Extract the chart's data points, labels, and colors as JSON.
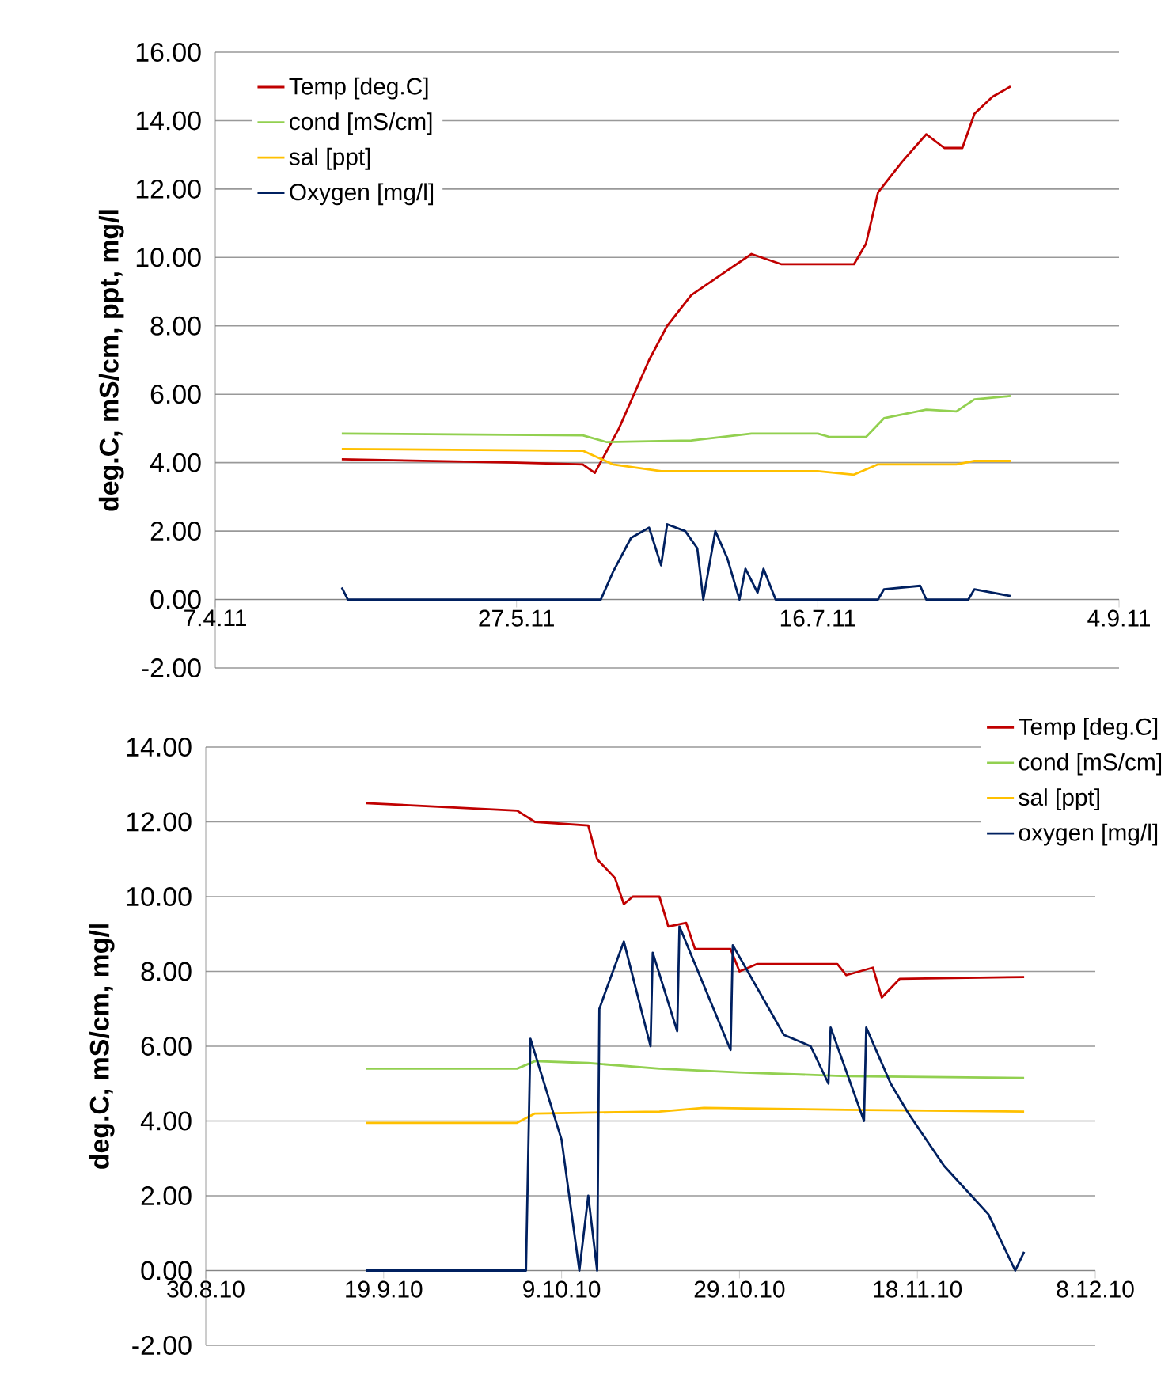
{
  "chart_data": [
    {
      "type": "line",
      "ylabel": "deg.C, mS/cm, ppt, mg/l",
      "legend": "top left",
      "grid": "y",
      "marker": "none",
      "line_style": "solid",
      "xlim": [
        "2011-04-07",
        "2011-09-04"
      ],
      "xticks": [
        {
          "value": "2011-04-07",
          "label": "7.4.11"
        },
        {
          "value": "2011-05-27",
          "label": "27.5.11"
        },
        {
          "value": "2011-07-16",
          "label": "16.7.11"
        },
        {
          "value": "2011-09-04",
          "label": "4.9.11"
        }
      ],
      "ylim": [
        -2,
        16
      ],
      "yticks": [
        {
          "value": -2,
          "label": "-2.00"
        },
        {
          "value": 0,
          "label": "0.00"
        },
        {
          "value": 2,
          "label": "2.00"
        },
        {
          "value": 4,
          "label": "4.00"
        },
        {
          "value": 6,
          "label": "6.00"
        },
        {
          "value": 8,
          "label": "8.00"
        },
        {
          "value": 10,
          "label": "10.00"
        },
        {
          "value": 12,
          "label": "12.00"
        },
        {
          "value": 14,
          "label": "14.00"
        },
        {
          "value": 16,
          "label": "16.00"
        }
      ],
      "series": [
        {
          "name": "Temp [deg.C]",
          "color": "#c00000",
          "x": [
            "2011-04-28",
            "2011-05-27",
            "2011-06-07",
            "2011-06-09",
            "2011-06-13",
            "2011-06-18",
            "2011-06-21",
            "2011-06-25",
            "2011-06-30",
            "2011-07-05",
            "2011-07-10",
            "2011-07-16",
            "2011-07-22",
            "2011-07-24",
            "2011-07-26",
            "2011-07-30",
            "2011-08-03",
            "2011-08-06",
            "2011-08-09",
            "2011-08-11",
            "2011-08-14",
            "2011-08-17"
          ],
          "values": [
            4.1,
            4.0,
            3.95,
            3.7,
            5.0,
            7.0,
            8.0,
            8.9,
            9.5,
            10.1,
            9.8,
            9.8,
            9.8,
            10.4,
            11.9,
            12.8,
            13.6,
            13.2,
            13.2,
            14.2,
            14.7,
            15.0
          ]
        },
        {
          "name": "cond [mS/cm]",
          "color": "#92d050",
          "x": [
            "2011-04-28",
            "2011-06-07",
            "2011-06-11",
            "2011-06-25",
            "2011-07-05",
            "2011-07-16",
            "2011-07-18",
            "2011-07-24",
            "2011-07-27",
            "2011-08-03",
            "2011-08-08",
            "2011-08-11",
            "2011-08-17"
          ],
          "values": [
            4.85,
            4.8,
            4.6,
            4.65,
            4.85,
            4.85,
            4.75,
            4.75,
            5.3,
            5.55,
            5.5,
            5.85,
            5.95
          ]
        },
        {
          "name": "sal [ppt]",
          "color": "#ffc000",
          "x": [
            "2011-04-28",
            "2011-06-07",
            "2011-06-12",
            "2011-06-20",
            "2011-07-16",
            "2011-07-22",
            "2011-07-26",
            "2011-08-08",
            "2011-08-11",
            "2011-08-17"
          ],
          "values": [
            4.4,
            4.35,
            3.95,
            3.75,
            3.75,
            3.65,
            3.95,
            3.95,
            4.05,
            4.05
          ]
        },
        {
          "name": "Oxygen [mg/l]",
          "color": "#002060",
          "x": [
            "2011-04-28",
            "2011-04-29",
            "2011-06-10",
            "2011-06-12",
            "2011-06-15",
            "2011-06-18",
            "2011-06-20",
            "2011-06-21",
            "2011-06-24",
            "2011-06-26",
            "2011-06-27",
            "2011-06-29",
            "2011-07-01",
            "2011-07-03",
            "2011-07-04",
            "2011-07-06",
            "2011-07-07",
            "2011-07-09",
            "2011-07-26",
            "2011-07-27",
            "2011-08-02",
            "2011-08-03",
            "2011-08-10",
            "2011-08-11",
            "2011-08-17"
          ],
          "values": [
            0.35,
            0.0,
            0.0,
            0.8,
            1.8,
            2.1,
            1.0,
            2.2,
            2.0,
            1.5,
            0.0,
            2.0,
            1.2,
            0.0,
            0.9,
            0.2,
            0.9,
            0.0,
            0.0,
            0.3,
            0.4,
            0.0,
            0.0,
            0.3,
            0.1
          ]
        }
      ]
    },
    {
      "type": "line",
      "ylabel": "deg.C, mS/cm, mg/l",
      "legend": "top right",
      "grid": "y",
      "marker": "none",
      "line_style": "solid",
      "xlim": [
        "2010-08-30",
        "2010-12-08"
      ],
      "xticks": [
        {
          "value": "2010-08-30",
          "label": "30.8.10"
        },
        {
          "value": "2010-09-19",
          "label": "19.9.10"
        },
        {
          "value": "2010-10-09",
          "label": "9.10.10"
        },
        {
          "value": "2010-10-29",
          "label": "29.10.10"
        },
        {
          "value": "2010-11-18",
          "label": "18.11.10"
        },
        {
          "value": "2010-12-08",
          "label": "8.12.10"
        }
      ],
      "ylim": [
        -2,
        14
      ],
      "yticks": [
        {
          "value": -2,
          "label": "-2.00"
        },
        {
          "value": 0,
          "label": "0.00"
        },
        {
          "value": 2,
          "label": "2.00"
        },
        {
          "value": 4,
          "label": "4.00"
        },
        {
          "value": 6,
          "label": "6.00"
        },
        {
          "value": 8,
          "label": "8.00"
        },
        {
          "value": 10,
          "label": "10.00"
        },
        {
          "value": 12,
          "label": "12.00"
        },
        {
          "value": 14,
          "label": "14.00"
        }
      ],
      "series": [
        {
          "name": "Temp [deg.C]",
          "color": "#c00000",
          "x": [
            "2010-09-17",
            "2010-10-04",
            "2010-10-06",
            "2010-10-12",
            "2010-10-13",
            "2010-10-15",
            "2010-10-16",
            "2010-10-17",
            "2010-10-20",
            "2010-10-21",
            "2010-10-23",
            "2010-10-24",
            "2010-10-28",
            "2010-10-29",
            "2010-10-31",
            "2010-11-09",
            "2010-11-10",
            "2010-11-13",
            "2010-11-14",
            "2010-11-16",
            "2010-11-30"
          ],
          "values": [
            12.5,
            12.3,
            12.0,
            11.9,
            11.0,
            10.5,
            9.8,
            10.0,
            10.0,
            9.2,
            9.3,
            8.6,
            8.6,
            8.0,
            8.2,
            8.2,
            7.9,
            8.1,
            7.3,
            7.8,
            7.85
          ]
        },
        {
          "name": "cond [mS/cm]",
          "color": "#92d050",
          "x": [
            "2010-09-17",
            "2010-10-04",
            "2010-10-06",
            "2010-10-12",
            "2010-10-20",
            "2010-10-29",
            "2010-11-10",
            "2010-11-30"
          ],
          "values": [
            5.4,
            5.4,
            5.6,
            5.55,
            5.4,
            5.3,
            5.2,
            5.15
          ]
        },
        {
          "name": "sal [ppt]",
          "color": "#ffc000",
          "x": [
            "2010-09-17",
            "2010-10-04",
            "2010-10-06",
            "2010-10-20",
            "2010-10-25",
            "2010-11-10",
            "2010-11-30"
          ],
          "values": [
            3.95,
            3.95,
            4.2,
            4.25,
            4.35,
            4.3,
            4.25
          ]
        },
        {
          "name": "oxygen [mg/l]",
          "color": "#002060",
          "x": [
            "2010-09-17",
            "2010-10-05",
            "2010-10-05T12:00",
            "2010-10-09",
            "2010-10-11",
            "2010-10-12",
            "2010-10-13",
            "2010-10-13T06:00",
            "2010-10-14",
            "2010-10-16",
            "2010-10-19",
            "2010-10-19T06:00",
            "2010-10-22",
            "2010-10-22T06:00",
            "2010-10-28",
            "2010-10-28T06:00",
            "2010-11-03",
            "2010-11-06",
            "2010-11-08",
            "2010-11-08T06:00",
            "2010-11-12",
            "2010-11-12T06:00",
            "2010-11-15",
            "2010-11-17",
            "2010-11-21",
            "2010-11-26",
            "2010-11-29",
            "2010-11-30"
          ],
          "values": [
            0.0,
            0.0,
            6.2,
            3.5,
            0.0,
            2.0,
            0.0,
            7.0,
            7.5,
            8.8,
            6.0,
            8.5,
            6.4,
            9.2,
            5.9,
            8.7,
            6.3,
            6.0,
            5.0,
            6.5,
            4.0,
            6.5,
            5.0,
            4.2,
            2.8,
            1.5,
            0.0,
            0.5
          ]
        }
      ]
    }
  ]
}
